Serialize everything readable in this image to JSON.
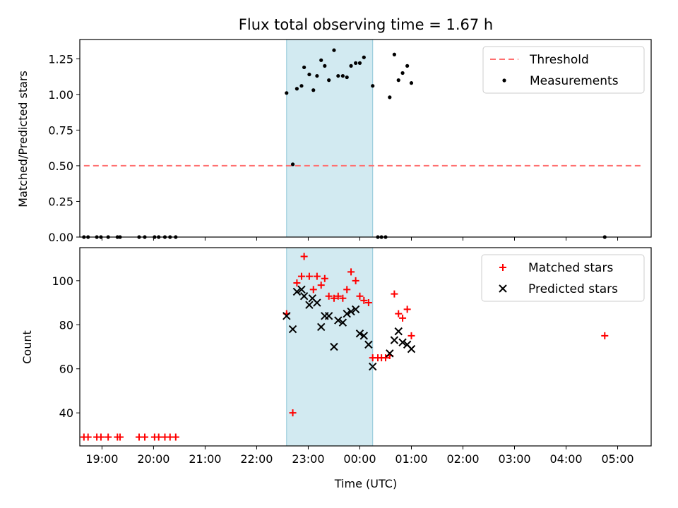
{
  "title": "Flux total observing time = 1.67 h",
  "colors": {
    "threshold": "#ff6f6f",
    "measurements": "#000000",
    "matched": "#ff0000",
    "predicted": "#000000",
    "shade": "#add8e6"
  },
  "chart_data": [
    {
      "type": "scatter",
      "ylabel": "Matched/Predicted stars",
      "xlabel": "",
      "x_unit": "hours after 19:00 UTC",
      "xlim": [
        -0.43,
        10.65
      ],
      "ylim": [
        0,
        1.385
      ],
      "yticks": [
        0,
        0.25,
        0.5,
        0.75,
        1.0,
        1.25
      ],
      "ytick_labels": [
        "0.00",
        "0.25",
        "0.50",
        "0.75",
        "1.00",
        "1.25"
      ],
      "shaded_interval": [
        3.58,
        5.25
      ],
      "legend": {
        "position": "upper right",
        "entries": [
          "Threshold",
          "Measurements"
        ]
      },
      "threshold": {
        "name": "Threshold",
        "y": 0.5,
        "x_range": [
          -0.35,
          10.5
        ],
        "style": "dashed"
      },
      "series": [
        {
          "name": "Measurements",
          "marker": "dot",
          "points": [
            [
              -0.35,
              0
            ],
            [
              -0.27,
              0
            ],
            [
              -0.1,
              0
            ],
            [
              -0.02,
              0
            ],
            [
              0.12,
              0
            ],
            [
              0.3,
              0
            ],
            [
              0.35,
              0
            ],
            [
              0.72,
              0
            ],
            [
              0.83,
              0
            ],
            [
              1.02,
              0
            ],
            [
              1.1,
              0
            ],
            [
              1.22,
              0
            ],
            [
              1.32,
              0
            ],
            [
              1.43,
              0
            ],
            [
              3.58,
              1.01
            ],
            [
              3.7,
              0.51
            ],
            [
              3.78,
              1.04
            ],
            [
              3.87,
              1.06
            ],
            [
              3.92,
              1.19
            ],
            [
              4.02,
              1.14
            ],
            [
              4.1,
              1.03
            ],
            [
              4.17,
              1.13
            ],
            [
              4.25,
              1.24
            ],
            [
              4.32,
              1.2
            ],
            [
              4.4,
              1.1
            ],
            [
              4.5,
              1.31
            ],
            [
              4.58,
              1.13
            ],
            [
              4.67,
              1.13
            ],
            [
              4.75,
              1.12
            ],
            [
              4.83,
              1.2
            ],
            [
              4.92,
              1.22
            ],
            [
              5.0,
              1.22
            ],
            [
              5.08,
              1.26
            ],
            [
              5.25,
              1.06
            ],
            [
              5.35,
              0
            ],
            [
              5.42,
              0
            ],
            [
              5.5,
              0
            ],
            [
              5.58,
              0.98
            ],
            [
              5.67,
              1.28
            ],
            [
              5.75,
              1.1
            ],
            [
              5.83,
              1.15
            ],
            [
              5.92,
              1.2
            ],
            [
              6.0,
              1.08
            ],
            [
              9.75,
              0
            ]
          ]
        }
      ]
    },
    {
      "type": "scatter",
      "ylabel": "Count",
      "xlabel": "Time (UTC)",
      "x_unit": "hours after 19:00 UTC",
      "xlim": [
        -0.43,
        10.65
      ],
      "ylim": [
        25,
        115
      ],
      "yticks": [
        40,
        60,
        80,
        100
      ],
      "ytick_labels": [
        "40",
        "60",
        "80",
        "100"
      ],
      "xticks": [
        0,
        1,
        2,
        3,
        4,
        5,
        6,
        7,
        8,
        9,
        10
      ],
      "xtick_labels": [
        "19:00",
        "20:00",
        "21:00",
        "22:00",
        "23:00",
        "00:00",
        "01:00",
        "02:00",
        "03:00",
        "04:00",
        "05:00"
      ],
      "shaded_interval": [
        3.58,
        5.25
      ],
      "legend": {
        "position": "upper right",
        "entries": [
          "Matched stars",
          "Predicted stars"
        ]
      },
      "series": [
        {
          "name": "Matched stars",
          "marker": "plus",
          "points": [
            [
              -0.35,
              29
            ],
            [
              -0.27,
              29
            ],
            [
              -0.1,
              29
            ],
            [
              -0.02,
              29
            ],
            [
              0.12,
              29
            ],
            [
              0.3,
              29
            ],
            [
              0.35,
              29
            ],
            [
              0.72,
              29
            ],
            [
              0.83,
              29
            ],
            [
              1.02,
              29
            ],
            [
              1.1,
              29
            ],
            [
              1.22,
              29
            ],
            [
              1.32,
              29
            ],
            [
              1.43,
              29
            ],
            [
              3.58,
              85
            ],
            [
              3.7,
              40
            ],
            [
              3.78,
              99
            ],
            [
              3.87,
              102
            ],
            [
              3.92,
              111
            ],
            [
              4.02,
              102
            ],
            [
              4.1,
              96
            ],
            [
              4.17,
              102
            ],
            [
              4.25,
              98
            ],
            [
              4.32,
              101
            ],
            [
              4.4,
              93
            ],
            [
              4.5,
              92
            ],
            [
              4.58,
              93
            ],
            [
              4.67,
              92
            ],
            [
              4.75,
              96
            ],
            [
              4.83,
              104
            ],
            [
              4.92,
              100
            ],
            [
              5.0,
              93
            ],
            [
              5.08,
              91
            ],
            [
              5.17,
              90
            ],
            [
              5.25,
              65
            ],
            [
              5.35,
              65
            ],
            [
              5.42,
              65
            ],
            [
              5.5,
              65
            ],
            [
              5.58,
              66
            ],
            [
              5.67,
              94
            ],
            [
              5.75,
              85
            ],
            [
              5.83,
              83
            ],
            [
              5.92,
              87
            ],
            [
              6.0,
              75
            ],
            [
              9.75,
              75
            ]
          ]
        },
        {
          "name": "Predicted stars",
          "marker": "x",
          "points": [
            [
              3.58,
              84
            ],
            [
              3.7,
              78
            ],
            [
              3.78,
              95
            ],
            [
              3.87,
              96
            ],
            [
              3.92,
              93
            ],
            [
              4.02,
              89
            ],
            [
              4.08,
              92
            ],
            [
              4.17,
              90
            ],
            [
              4.25,
              79
            ],
            [
              4.32,
              84
            ],
            [
              4.4,
              84
            ],
            [
              4.5,
              70
            ],
            [
              4.58,
              82
            ],
            [
              4.67,
              81
            ],
            [
              4.75,
              85
            ],
            [
              4.83,
              86
            ],
            [
              4.92,
              87
            ],
            [
              5.0,
              76
            ],
            [
              5.08,
              75
            ],
            [
              5.17,
              71
            ],
            [
              5.25,
              61
            ],
            [
              5.58,
              67
            ],
            [
              5.67,
              73
            ],
            [
              5.75,
              77
            ],
            [
              5.83,
              72
            ],
            [
              5.92,
              71
            ],
            [
              6.0,
              69
            ]
          ]
        }
      ]
    }
  ]
}
